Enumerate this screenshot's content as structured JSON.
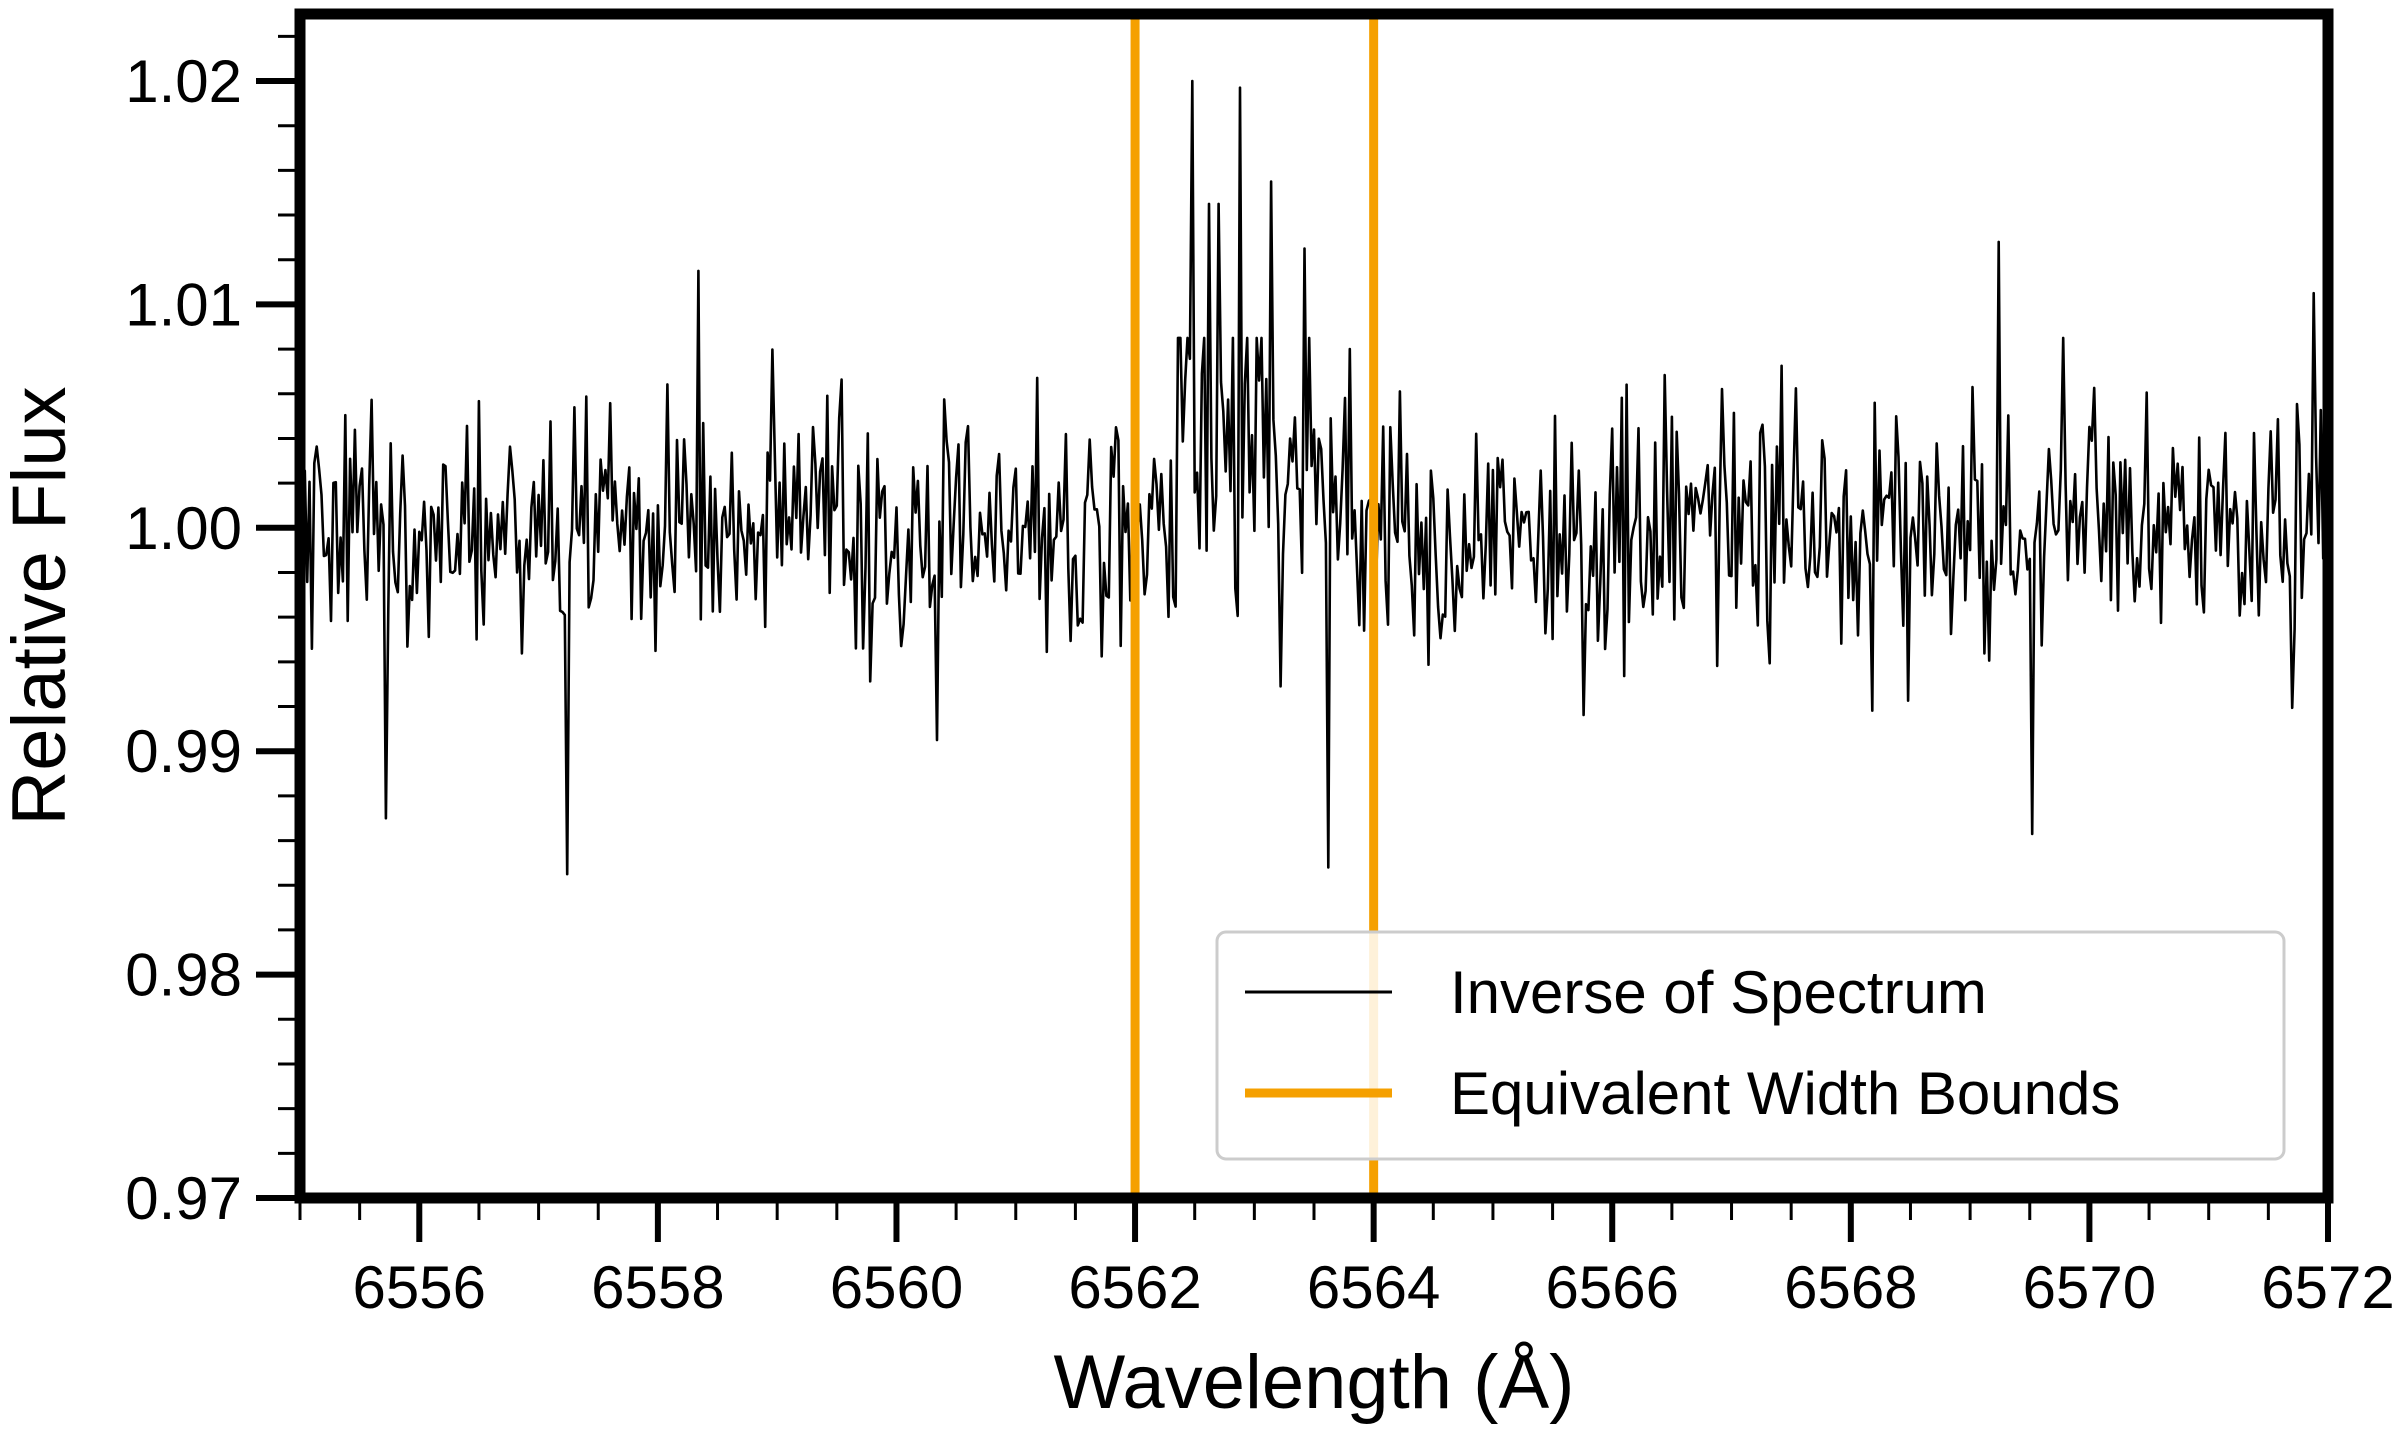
{
  "chart_data": {
    "type": "line",
    "title": "",
    "xlabel": "Wavelength (Å)",
    "ylabel": "Relative Flux",
    "xlim": [
      6555,
      6572
    ],
    "ylim": [
      0.97,
      1.023
    ],
    "x_ticks": [
      6556,
      6558,
      6560,
      6562,
      6564,
      6566,
      6568,
      6570,
      6572
    ],
    "x_tick_labels": [
      "6556",
      "6558",
      "6560",
      "6562",
      "6564",
      "6566",
      "6568",
      "6570",
      "6572"
    ],
    "x_minor_step": 0.5,
    "y_ticks": [
      0.97,
      0.98,
      0.99,
      1.0,
      1.01,
      1.02
    ],
    "y_tick_labels": [
      "0.97",
      "0.98",
      "0.99",
      "1.00",
      "1.01",
      "1.02"
    ],
    "y_minor_step": 0.002,
    "grid": false,
    "legend_position": "bottom-right",
    "series": [
      {
        "name": "Inverse of Spectrum",
        "color": "#000000",
        "x_start": 6555.0,
        "x_step": 0.02,
        "baseline": 1.0,
        "noise_sigma": 0.0028,
        "features": [
          {
            "x": 6555.72,
            "y": 0.987
          },
          {
            "x": 6557.25,
            "y": 0.9845
          },
          {
            "x": 6558.35,
            "y": 1.0115
          },
          {
            "x": 6560.35,
            "y": 0.9905
          },
          {
            "x": 6562.48,
            "y": 1.02
          },
          {
            "x": 6562.62,
            "y": 1.0145
          },
          {
            "x": 6562.7,
            "y": 1.0145
          },
          {
            "x": 6562.88,
            "y": 1.0197
          },
          {
            "x": 6563.15,
            "y": 1.0155
          },
          {
            "x": 6563.42,
            "y": 1.0125
          },
          {
            "x": 6563.62,
            "y": 0.9848
          },
          {
            "x": 6563.8,
            "y": 1.008
          },
          {
            "x": 6569.25,
            "y": 1.0128
          },
          {
            "x": 6569.52,
            "y": 0.9863
          },
          {
            "x": 6571.88,
            "y": 1.0105
          }
        ]
      },
      {
        "name": "Equivalent Width Bounds",
        "color": "#f5a000",
        "vlines": [
          6562,
          6564
        ]
      }
    ]
  },
  "legend": {
    "items": [
      {
        "label": "Inverse of Spectrum",
        "color": "#000000"
      },
      {
        "label": "Equivalent Width Bounds",
        "color": "#f5a000"
      }
    ]
  }
}
